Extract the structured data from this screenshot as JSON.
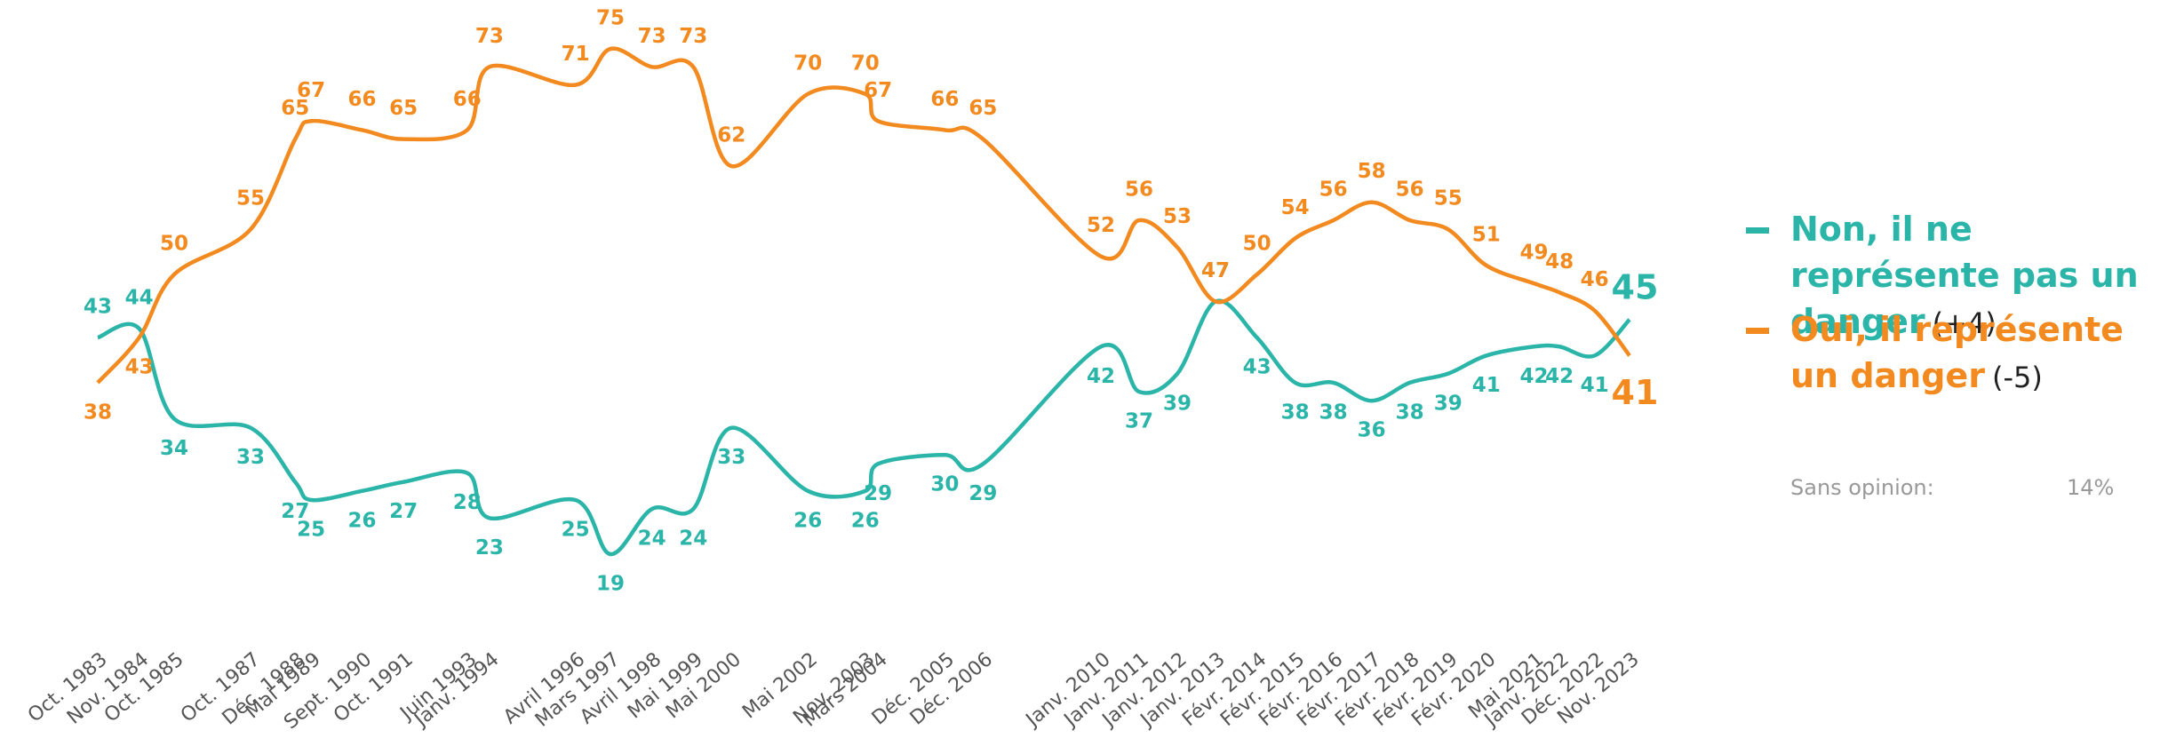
{
  "chart_data": {
    "type": "line",
    "categories": [
      "Oct. 1983",
      "Nov. 1984",
      "Oct. 1985",
      "Oct. 1987",
      "Déc. 1988",
      "Mai 1989",
      "Sept. 1990",
      "Oct. 1991",
      "Juin 1993",
      "Janv. 1994",
      "Avril 1996",
      "Mars 1997",
      "Avril 1998",
      "Mai 1999",
      "Mai 2000",
      "Mai 2002",
      "Nov. 2003",
      "Mars 2004",
      "Déc. 2005",
      "Déc. 2006",
      "Janv. 2010",
      "Janv. 2011",
      "Janv. 2012",
      "Janv. 2013",
      "Févr. 2014",
      "Févr. 2015",
      "Févr. 2016",
      "Févr. 2017",
      "Févr. 2018",
      "Févr. 2019",
      "Févr. 2020",
      "Mai 2021",
      "Janv. 2022",
      "Déc. 2022",
      "Nov. 2023"
    ],
    "series": [
      {
        "name": "Non, il ne représente pas un danger",
        "change": "(+4)",
        "color": "#2bb5a9",
        "values": [
          43,
          44,
          34,
          33,
          27,
          25,
          26,
          27,
          28,
          23,
          25,
          19,
          24,
          24,
          33,
          26,
          26,
          29,
          30,
          29,
          42,
          37,
          39,
          47,
          43,
          38,
          38,
          36,
          38,
          39,
          41,
          42,
          42,
          41,
          45
        ]
      },
      {
        "name": "Oui, il représente un danger",
        "change": "(-5)",
        "color": "#f28a1f",
        "values": [
          38,
          43,
          50,
          55,
          65,
          67,
          66,
          65,
          66,
          73,
          71,
          75,
          73,
          73,
          62,
          70,
          70,
          67,
          66,
          65,
          52,
          56,
          53,
          47,
          50,
          54,
          56,
          58,
          56,
          55,
          51,
          49,
          48,
          46,
          41
        ]
      }
    ],
    "sans_opinion": {
      "label": "Sans opinion:",
      "value": 14,
      "value_label": "14%"
    }
  }
}
